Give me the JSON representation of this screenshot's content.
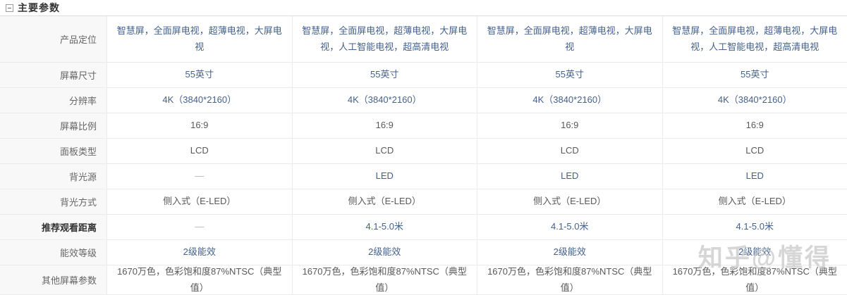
{
  "header": {
    "title": "主要参数"
  },
  "watermark": {
    "text": "知乎@懂得"
  },
  "colors": {
    "link_value": "#44618c",
    "plain_value": "#595959",
    "row_label": "#666666",
    "label_column_bg": "#f8f8f8",
    "grid_border": "#ebebeb",
    "watermark": "#c9c9c9"
  },
  "table": {
    "column_count": 4,
    "rows": [
      {
        "label": "产品定位",
        "bold": false,
        "tall": true,
        "values": [
          {
            "text": "智慧屏，全面屏电视，超薄电视，大屏电视",
            "style": "link"
          },
          {
            "text": "智慧屏，全面屏电视，超薄电视，大屏电视，人工智能电视，超高清电视",
            "style": "link"
          },
          {
            "text": "智慧屏，全面屏电视，超薄电视，大屏电视",
            "style": "link"
          },
          {
            "text": "智慧屏，全面屏电视，超薄电视，大屏电视，人工智能电视，超高清电视",
            "style": "link"
          }
        ]
      },
      {
        "label": "屏幕尺寸",
        "values": [
          {
            "text": "55英寸",
            "style": "link"
          },
          {
            "text": "55英寸",
            "style": "link"
          },
          {
            "text": "55英寸",
            "style": "link"
          },
          {
            "text": "55英寸",
            "style": "link"
          }
        ]
      },
      {
        "label": "分辨率",
        "values": [
          {
            "text": "4K（3840*2160）",
            "style": "link"
          },
          {
            "text": "4K（3840*2160）",
            "style": "link"
          },
          {
            "text": "4K（3840*2160）",
            "style": "link"
          },
          {
            "text": "4K（3840*2160）",
            "style": "link"
          }
        ]
      },
      {
        "label": "屏幕比例",
        "values": [
          {
            "text": "16:9",
            "style": "plain"
          },
          {
            "text": "16:9",
            "style": "plain"
          },
          {
            "text": "16:9",
            "style": "plain"
          },
          {
            "text": "16:9",
            "style": "plain"
          }
        ]
      },
      {
        "label": "面板类型",
        "values": [
          {
            "text": "LCD",
            "style": "plain"
          },
          {
            "text": "LCD",
            "style": "plain"
          },
          {
            "text": "LCD",
            "style": "plain"
          },
          {
            "text": "LCD",
            "style": "plain"
          }
        ]
      },
      {
        "label": "背光源",
        "values": [
          {
            "text": "—",
            "style": "dash"
          },
          {
            "text": "LED",
            "style": "link"
          },
          {
            "text": "LED",
            "style": "link"
          },
          {
            "text": "LED",
            "style": "link"
          }
        ]
      },
      {
        "label": "背光方式",
        "values": [
          {
            "text": "侧入式（E-LED）",
            "style": "plain"
          },
          {
            "text": "侧入式（E-LED）",
            "style": "plain"
          },
          {
            "text": "侧入式（E-LED）",
            "style": "plain"
          },
          {
            "text": "侧入式（E-LED）",
            "style": "plain"
          }
        ]
      },
      {
        "label": "推荐观看距离",
        "bold": true,
        "values": [
          {
            "text": "—",
            "style": "dash"
          },
          {
            "text": "4.1-5.0米",
            "style": "link"
          },
          {
            "text": "4.1-5.0米",
            "style": "link"
          },
          {
            "text": "4.1-5.0米",
            "style": "link"
          }
        ]
      },
      {
        "label": "能效等级",
        "values": [
          {
            "text": "2级能效",
            "style": "link"
          },
          {
            "text": "2级能效",
            "style": "link"
          },
          {
            "text": "2级能效",
            "style": "link"
          },
          {
            "text": "2级能效",
            "style": "link"
          }
        ]
      },
      {
        "label": "其他屏幕参数",
        "last": true,
        "values": [
          {
            "text": "1670万色，色彩饱和度87%NTSC（典型值）",
            "style": "plain"
          },
          {
            "text": "1670万色，色彩饱和度87%NTSC（典型值）",
            "style": "plain"
          },
          {
            "text": "1670万色，色彩饱和度87%NTSC（典型值）",
            "style": "plain"
          },
          {
            "text": "1670万色，色彩饱和度87%NTSC（典型值）",
            "style": "plain"
          }
        ]
      }
    ]
  }
}
